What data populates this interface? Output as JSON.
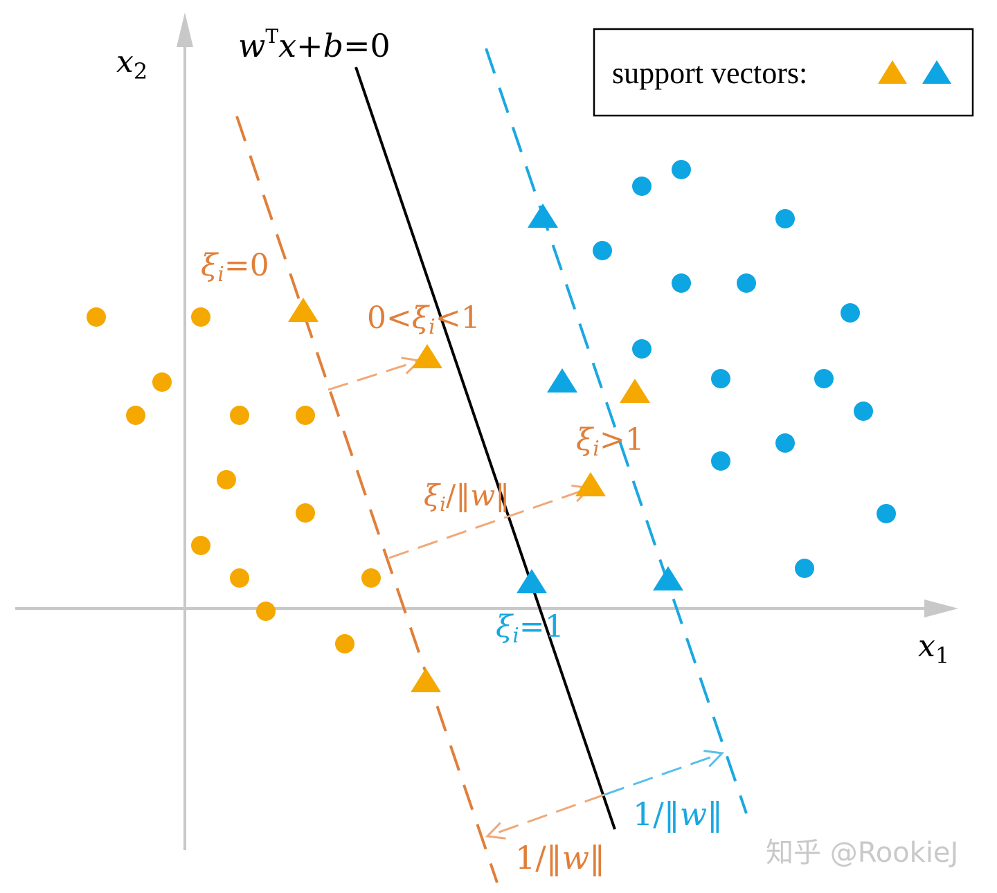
{
  "colors": {
    "orange": "#F5A800",
    "blue": "#0EA5E3",
    "orange_line": "#E07F3A",
    "orange_arrow": "#F0A878",
    "blue_line": "#1AA8E0",
    "blue_arrow": "#58BFEA",
    "axis": "#C8C8C8",
    "black": "#000000"
  },
  "axes": {
    "x_label_var": "x",
    "x_label_sub": "1",
    "y_label_var": "x",
    "y_label_sub": "2"
  },
  "hyperplane": {
    "w": "w",
    "sup": "T",
    "x": "x",
    "plus": "+",
    "b": "b",
    "eq": "=0"
  },
  "legend": {
    "label": "support vectors:",
    "icons": [
      "orange-triangle",
      "blue-triangle"
    ]
  },
  "annotations": {
    "xi_zero": {
      "xi": "ξ",
      "i": "i",
      "rest": "=0"
    },
    "xi_between": {
      "pre": "0<",
      "xi": "ξ",
      "i": "i",
      "rest": "<1"
    },
    "xi_greater": {
      "xi": "ξ",
      "i": "i",
      "rest": ">1"
    },
    "xi_one": {
      "xi": "ξ",
      "i": "i",
      "rest": "=1"
    },
    "xi_over_w": {
      "xi": "ξ",
      "i": "i",
      "slash": "/‖",
      "w": "w",
      "end": "‖"
    },
    "inv_w_orange": {
      "pre": "1/‖",
      "w": "w",
      "end": "‖"
    },
    "inv_w_blue": {
      "pre": "1/‖",
      "w": "w",
      "end": "‖"
    }
  },
  "watermark": "知乎 @RookieJ"
}
